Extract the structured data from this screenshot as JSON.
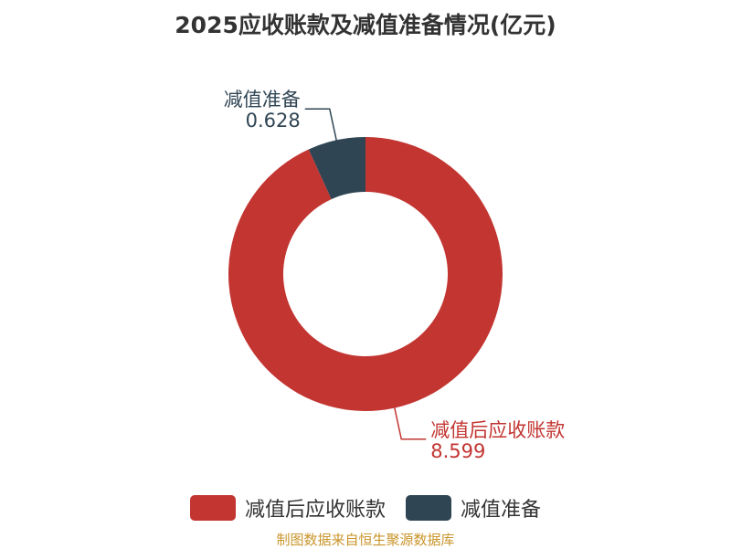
{
  "chart_data": {
    "type": "pie",
    "variant": "donut",
    "title": "2025应收账款及减值准备情况(亿元)",
    "slices": [
      {
        "name": "减值后应收账款",
        "value": 8.599,
        "value_label": "8.599",
        "color": "#c23531"
      },
      {
        "name": "减值准备",
        "value": 0.628,
        "value_label": "0.628",
        "color": "#2f4554"
      }
    ],
    "legend": "bottom"
  },
  "source": "制图数据来自恒生聚源数据库"
}
